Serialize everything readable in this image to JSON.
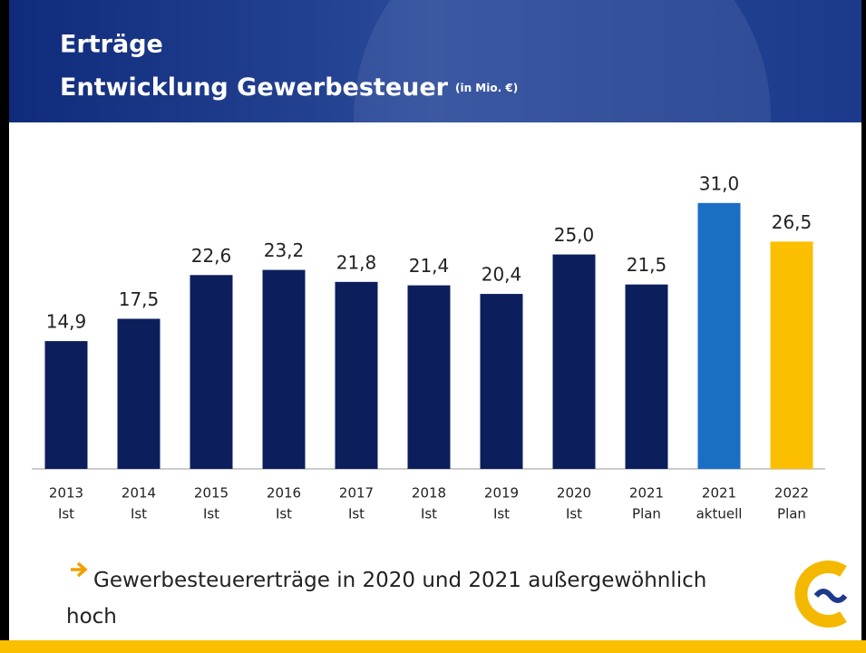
{
  "chart_data": {
    "type": "bar",
    "title": "Erträge",
    "subtitle": "Entwicklung Gewerbesteuer",
    "unit_note": "(in Mio. €)",
    "categories": [
      [
        "2013",
        "Ist"
      ],
      [
        "2014",
        "Ist"
      ],
      [
        "2015",
        "Ist"
      ],
      [
        "2016",
        "Ist"
      ],
      [
        "2017",
        "Ist"
      ],
      [
        "2018",
        "Ist"
      ],
      [
        "2019",
        "Ist"
      ],
      [
        "2020",
        "Ist"
      ],
      [
        "2021",
        "Plan"
      ],
      [
        "2021",
        "aktuell"
      ],
      [
        "2022",
        "Plan"
      ]
    ],
    "values": [
      14.9,
      17.5,
      22.6,
      23.2,
      21.8,
      21.4,
      20.4,
      25.0,
      21.5,
      31.0,
      26.5
    ],
    "value_labels": [
      "14,9",
      "17,5",
      "22,6",
      "23,2",
      "21,8",
      "21,4",
      "20,4",
      "25,0",
      "21,5",
      "31,0",
      "26,5"
    ],
    "colors": [
      "#0c1f5c",
      "#0c1f5c",
      "#0c1f5c",
      "#0c1f5c",
      "#0c1f5c",
      "#0c1f5c",
      "#0c1f5c",
      "#0c1f5c",
      "#0c1f5c",
      "#1a6fc4",
      "#fbbf00"
    ],
    "ylim": [
      0,
      35
    ],
    "annotation": "Gewerbesteuererträge in 2020 und 2021 außergewöhnlich hoch"
  }
}
